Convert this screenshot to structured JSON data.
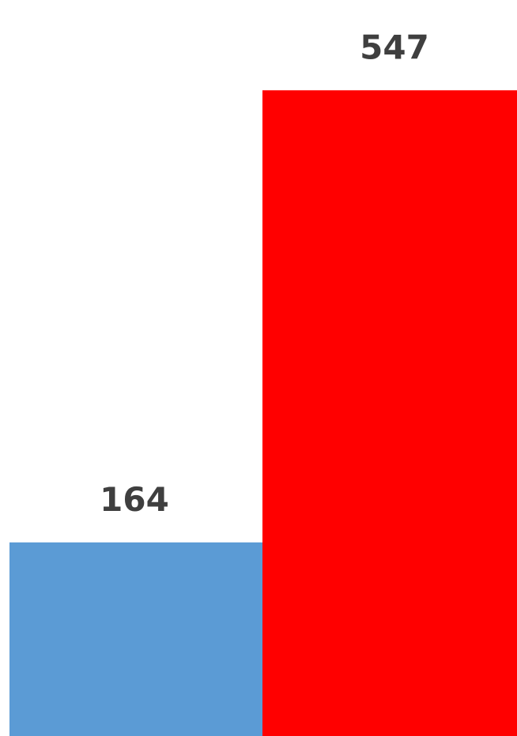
{
  "chart_data": {
    "type": "bar",
    "values": [
      164,
      547
    ],
    "data_labels": [
      "164",
      "547"
    ],
    "ylim": [
      0,
      584
    ],
    "grid": false,
    "colors": [
      "#5b9bd5",
      "#ff0000"
    ]
  }
}
